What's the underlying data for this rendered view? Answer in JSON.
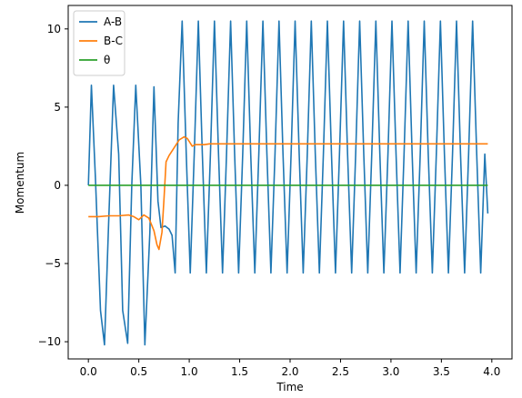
{
  "chart_data": {
    "type": "line",
    "title": "",
    "xlabel": "Time",
    "ylabel": "Momentum",
    "xlim": [
      -0.2,
      4.2
    ],
    "ylim": [
      -11.1,
      11.5
    ],
    "xticks": [
      0.0,
      0.5,
      1.0,
      1.5,
      2.0,
      2.5,
      3.0,
      3.5,
      4.0
    ],
    "xtick_labels": [
      "0.0",
      "0.5",
      "1.0",
      "1.5",
      "2.0",
      "2.5",
      "3.0",
      "3.5",
      "4.0"
    ],
    "yticks": [
      -10,
      -5,
      0,
      5,
      10
    ],
    "ytick_labels": [
      "−10",
      "−5",
      "0",
      "5",
      "10"
    ],
    "grid": false,
    "legend_position": "top-left",
    "series": [
      {
        "name": "A-B",
        "color": "#1f77b4",
        "x": [
          0.0,
          0.03,
          0.07,
          0.12,
          0.16,
          0.2,
          0.25,
          0.3,
          0.34,
          0.39,
          0.43,
          0.47,
          0.52,
          0.56,
          0.61,
          0.65,
          0.69,
          0.72,
          0.76,
          0.8,
          0.83,
          0.86,
          0.89,
          0.93,
          0.97,
          1.01,
          1.05,
          1.09,
          1.13,
          1.17,
          1.21,
          1.25,
          1.29,
          1.33,
          1.37,
          1.41,
          1.45,
          1.49,
          1.53,
          1.57,
          1.61,
          1.65,
          1.69,
          1.73,
          1.77,
          1.81,
          1.85,
          1.89,
          1.93,
          1.97,
          2.01,
          2.05,
          2.09,
          2.13,
          2.17,
          2.21,
          2.25,
          2.29,
          2.33,
          2.37,
          2.41,
          2.45,
          2.49,
          2.53,
          2.57,
          2.61,
          2.65,
          2.69,
          2.73,
          2.77,
          2.81,
          2.85,
          2.89,
          2.93,
          2.97,
          3.01,
          3.05,
          3.09,
          3.13,
          3.17,
          3.21,
          3.25,
          3.29,
          3.33,
          3.37,
          3.41,
          3.45,
          3.49,
          3.53,
          3.57,
          3.61,
          3.65,
          3.69,
          3.73,
          3.77,
          3.81,
          3.85,
          3.89,
          3.93,
          3.96
        ],
        "y": [
          0.0,
          6.4,
          0.5,
          -8.0,
          -10.2,
          -2.5,
          6.4,
          2.0,
          -8.0,
          -10.1,
          0.0,
          6.4,
          0.0,
          -10.2,
          -3.0,
          6.3,
          -1.0,
          -2.7,
          -2.6,
          -2.8,
          -3.2,
          -5.6,
          4.0,
          10.5,
          2.0,
          -5.6,
          2.0,
          10.5,
          2.0,
          -5.6,
          2.0,
          10.5,
          2.0,
          -5.6,
          2.0,
          10.5,
          2.0,
          -5.6,
          2.0,
          10.5,
          2.0,
          -5.6,
          2.0,
          10.5,
          2.0,
          -5.6,
          2.0,
          10.5,
          2.0,
          -5.6,
          2.0,
          10.5,
          2.0,
          -5.6,
          2.0,
          10.5,
          2.0,
          -5.6,
          2.0,
          10.5,
          2.0,
          -5.6,
          2.0,
          10.5,
          2.0,
          -5.6,
          2.0,
          10.5,
          2.0,
          -5.6,
          2.0,
          10.5,
          2.0,
          -5.6,
          2.0,
          10.5,
          2.0,
          -5.6,
          2.0,
          10.5,
          2.0,
          -5.6,
          2.0,
          10.5,
          2.0,
          -5.6,
          2.0,
          10.5,
          2.0,
          -5.6,
          2.0,
          10.5,
          2.0,
          -5.6,
          2.0,
          10.5,
          2.0,
          -5.6,
          2.0,
          -1.8
        ]
      },
      {
        "name": "B-C",
        "color": "#ff7f0e",
        "x": [
          0.0,
          0.1,
          0.2,
          0.3,
          0.4,
          0.45,
          0.5,
          0.55,
          0.6,
          0.65,
          0.68,
          0.7,
          0.73,
          0.75,
          0.77,
          0.8,
          0.82,
          0.85,
          0.9,
          0.95,
          0.98,
          1.0,
          1.03,
          1.06,
          1.1,
          1.15,
          1.2,
          1.3,
          1.5,
          2.0,
          2.5,
          3.0,
          3.5,
          3.96
        ],
        "y": [
          -2.0,
          -2.0,
          -1.95,
          -1.95,
          -1.9,
          -2.0,
          -2.2,
          -1.9,
          -2.1,
          -2.9,
          -3.8,
          -4.1,
          -3.0,
          -0.8,
          1.5,
          1.9,
          2.1,
          2.4,
          2.9,
          3.1,
          3.0,
          2.8,
          2.5,
          2.6,
          2.6,
          2.6,
          2.65,
          2.65,
          2.65,
          2.65,
          2.65,
          2.65,
          2.65,
          2.65
        ]
      },
      {
        "name": "θ",
        "color": "#2ca02c",
        "x": [
          0.0,
          3.96
        ],
        "y": [
          0.0,
          0.0
        ]
      }
    ]
  }
}
